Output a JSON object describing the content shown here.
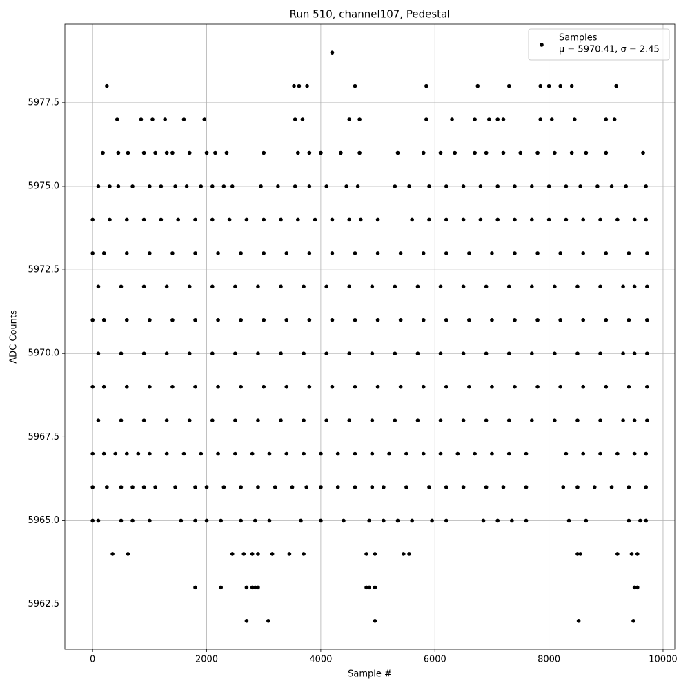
{
  "chart_data": {
    "type": "scatter",
    "title": "Run 510, channel107, Pedestal",
    "xlabel": "Sample #",
    "ylabel": "ADC Counts",
    "legend_text": "μ = 5970.41, σ = 2.45",
    "legend": "upper right",
    "grid": true,
    "xlim": [
      -486,
      10206
    ],
    "ylim": [
      5961.15,
      5979.85
    ],
    "xticks": [
      0,
      2000,
      4000,
      6000,
      8000,
      10000
    ],
    "yticks": [
      5962.5,
      {
        "value": 5965,
        "label": "5965.0"
      },
      5967.5,
      {
        "value": 5970,
        "label": "5970.0"
      },
      5972.5,
      {
        "value": 5975,
        "label": "5975.0"
      },
      5977.5
    ],
    "series": [
      {
        "name": "Samples",
        "color": "#000000",
        "x": [
          4200,
          250,
          3530,
          3620,
          3760,
          4600,
          5850,
          6750,
          7300,
          7850,
          8000,
          8200,
          8400,
          9180,
          430,
          850,
          1050,
          1270,
          1600,
          1960,
          3550,
          3680,
          4500,
          4680,
          5850,
          6300,
          6700,
          6950,
          7100,
          7200,
          7850,
          8050,
          8450,
          9000,
          9150,
          180,
          450,
          620,
          900,
          1100,
          1300,
          1400,
          1700,
          2000,
          2150,
          2350,
          3000,
          3600,
          3800,
          4000,
          4350,
          4680,
          5350,
          5800,
          6100,
          6350,
          6700,
          6900,
          7200,
          7500,
          7800,
          8100,
          8400,
          8650,
          9000,
          9650,
          100,
          300,
          450,
          700,
          1000,
          1200,
          1450,
          1650,
          1900,
          2100,
          2300,
          2450,
          2950,
          3250,
          3550,
          3800,
          4100,
          4450,
          4650,
          5300,
          5550,
          5900,
          6200,
          6500,
          6800,
          7100,
          7400,
          7700,
          8000,
          8300,
          8550,
          8850,
          9100,
          9350,
          9700,
          0,
          300,
          600,
          900,
          1200,
          1500,
          1800,
          2100,
          2400,
          2700,
          3000,
          3300,
          3600,
          3900,
          4200,
          4500,
          4700,
          5000,
          5600,
          5900,
          6200,
          6500,
          6800,
          7100,
          7400,
          7700,
          8000,
          8300,
          8600,
          8900,
          9200,
          9500,
          9700,
          0,
          200,
          600,
          1000,
          1400,
          1800,
          2200,
          2600,
          3000,
          3400,
          3800,
          4200,
          4600,
          5000,
          5400,
          5800,
          6200,
          6600,
          7000,
          7400,
          7800,
          8200,
          8600,
          9000,
          9400,
          9720,
          100,
          500,
          900,
          1300,
          1700,
          2100,
          2500,
          2900,
          3300,
          3700,
          4100,
          4500,
          4900,
          5300,
          5700,
          6100,
          6500,
          6900,
          7300,
          7700,
          8100,
          8500,
          8900,
          9300,
          9500,
          9720,
          0,
          200,
          600,
          1000,
          1400,
          1800,
          2200,
          2600,
          3000,
          3400,
          3800,
          4200,
          4600,
          5000,
          5400,
          5800,
          6200,
          6600,
          7000,
          7400,
          7800,
          8200,
          8600,
          9000,
          9400,
          9720,
          100,
          500,
          900,
          1300,
          1700,
          2100,
          2500,
          2900,
          3300,
          3700,
          4100,
          4500,
          4900,
          5300,
          5700,
          6100,
          6500,
          6900,
          7300,
          7700,
          8100,
          8500,
          8900,
          9300,
          9500,
          9720,
          0,
          200,
          600,
          1000,
          1400,
          1800,
          2200,
          2600,
          3000,
          3400,
          3800,
          4200,
          4600,
          5000,
          5400,
          5800,
          6200,
          6600,
          7000,
          7400,
          7800,
          8200,
          8600,
          9000,
          9400,
          9720,
          100,
          500,
          900,
          1300,
          1700,
          2100,
          2500,
          2900,
          3300,
          3700,
          4100,
          4500,
          4900,
          5300,
          5700,
          6100,
          6500,
          6900,
          7300,
          7700,
          8100,
          8500,
          8900,
          9300,
          9500,
          9720,
          0,
          200,
          400,
          600,
          800,
          1000,
          1300,
          1600,
          1900,
          2200,
          2500,
          2800,
          3100,
          3400,
          3700,
          4000,
          4300,
          4600,
          4900,
          5200,
          5500,
          5800,
          6100,
          6400,
          6700,
          7000,
          7300,
          7600,
          8300,
          8600,
          8900,
          9200,
          9500,
          9700,
          0,
          250,
          500,
          700,
          900,
          1100,
          1450,
          1800,
          2000,
          2300,
          2600,
          2900,
          3200,
          3500,
          3750,
          4000,
          4300,
          4600,
          4900,
          5100,
          5500,
          5900,
          6200,
          6500,
          6900,
          7200,
          7600,
          8250,
          8500,
          8800,
          9100,
          9400,
          9700,
          0,
          100,
          500,
          700,
          1000,
          1550,
          1800,
          2000,
          2250,
          2600,
          2850,
          3100,
          3650,
          4000,
          4400,
          4850,
          5100,
          5350,
          5600,
          5950,
          6200,
          6850,
          7100,
          7350,
          7600,
          8350,
          8650,
          9400,
          9600,
          9700,
          350,
          620,
          2450,
          2650,
          2800,
          2900,
          3150,
          3450,
          3700,
          4800,
          4950,
          5450,
          5550,
          8500,
          8550,
          9200,
          9450,
          9550,
          1800,
          2250,
          2700,
          2800,
          2850,
          2900,
          4800,
          4850,
          4950,
          9500,
          9550,
          2700,
          3080,
          4950,
          8520,
          9480
        ],
        "values": [
          5979,
          5978,
          5978,
          5978,
          5978,
          5978,
          5978,
          5978,
          5978,
          5978,
          5978,
          5978,
          5978,
          5978,
          5977,
          5977,
          5977,
          5977,
          5977,
          5977,
          5977,
          5977,
          5977,
          5977,
          5977,
          5977,
          5977,
          5977,
          5977,
          5977,
          5977,
          5977,
          5977,
          5977,
          5977,
          5976,
          5976,
          5976,
          5976,
          5976,
          5976,
          5976,
          5976,
          5976,
          5976,
          5976,
          5976,
          5976,
          5976,
          5976,
          5976,
          5976,
          5976,
          5976,
          5976,
          5976,
          5976,
          5976,
          5976,
          5976,
          5976,
          5976,
          5976,
          5976,
          5976,
          5976,
          5975,
          5975,
          5975,
          5975,
          5975,
          5975,
          5975,
          5975,
          5975,
          5975,
          5975,
          5975,
          5975,
          5975,
          5975,
          5975,
          5975,
          5975,
          5975,
          5975,
          5975,
          5975,
          5975,
          5975,
          5975,
          5975,
          5975,
          5975,
          5975,
          5975,
          5975,
          5975,
          5975,
          5975,
          5975,
          5974,
          5974,
          5974,
          5974,
          5974,
          5974,
          5974,
          5974,
          5974,
          5974,
          5974,
          5974,
          5974,
          5974,
          5974,
          5974,
          5974,
          5974,
          5974,
          5974,
          5974,
          5974,
          5974,
          5974,
          5974,
          5974,
          5974,
          5974,
          5974,
          5974,
          5974,
          5974,
          5974,
          5973,
          5973,
          5973,
          5973,
          5973,
          5973,
          5973,
          5973,
          5973,
          5973,
          5973,
          5973,
          5973,
          5973,
          5973,
          5973,
          5973,
          5973,
          5973,
          5973,
          5973,
          5973,
          5973,
          5973,
          5973,
          5973,
          5972,
          5972,
          5972,
          5972,
          5972,
          5972,
          5972,
          5972,
          5972,
          5972,
          5972,
          5972,
          5972,
          5972,
          5972,
          5972,
          5972,
          5972,
          5972,
          5972,
          5972,
          5972,
          5972,
          5972,
          5972,
          5972,
          5971,
          5971,
          5971,
          5971,
          5971,
          5971,
          5971,
          5971,
          5971,
          5971,
          5971,
          5971,
          5971,
          5971,
          5971,
          5971,
          5971,
          5971,
          5971,
          5971,
          5971,
          5971,
          5971,
          5971,
          5971,
          5971,
          5970,
          5970,
          5970,
          5970,
          5970,
          5970,
          5970,
          5970,
          5970,
          5970,
          5970,
          5970,
          5970,
          5970,
          5970,
          5970,
          5970,
          5970,
          5970,
          5970,
          5970,
          5970,
          5970,
          5970,
          5970,
          5970,
          5969,
          5969,
          5969,
          5969,
          5969,
          5969,
          5969,
          5969,
          5969,
          5969,
          5969,
          5969,
          5969,
          5969,
          5969,
          5969,
          5969,
          5969,
          5969,
          5969,
          5969,
          5969,
          5969,
          5969,
          5969,
          5969,
          5968,
          5968,
          5968,
          5968,
          5968,
          5968,
          5968,
          5968,
          5968,
          5968,
          5968,
          5968,
          5968,
          5968,
          5968,
          5968,
          5968,
          5968,
          5968,
          5968,
          5968,
          5968,
          5968,
          5968,
          5968,
          5968,
          5967,
          5967,
          5967,
          5967,
          5967,
          5967,
          5967,
          5967,
          5967,
          5967,
          5967,
          5967,
          5967,
          5967,
          5967,
          5967,
          5967,
          5967,
          5967,
          5967,
          5967,
          5967,
          5967,
          5967,
          5967,
          5967,
          5967,
          5967,
          5967,
          5967,
          5967,
          5967,
          5967,
          5967,
          5966,
          5966,
          5966,
          5966,
          5966,
          5966,
          5966,
          5966,
          5966,
          5966,
          5966,
          5966,
          5966,
          5966,
          5966,
          5966,
          5966,
          5966,
          5966,
          5966,
          5966,
          5966,
          5966,
          5966,
          5966,
          5966,
          5966,
          5966,
          5966,
          5966,
          5966,
          5966,
          5966,
          5965,
          5965,
          5965,
          5965,
          5965,
          5965,
          5965,
          5965,
          5965,
          5965,
          5965,
          5965,
          5965,
          5965,
          5965,
          5965,
          5965,
          5965,
          5965,
          5965,
          5965,
          5965,
          5965,
          5965,
          5965,
          5965,
          5965,
          5965,
          5965,
          5965,
          5964,
          5964,
          5964,
          5964,
          5964,
          5964,
          5964,
          5964,
          5964,
          5964,
          5964,
          5964,
          5964,
          5964,
          5964,
          5964,
          5964,
          5964,
          5963,
          5963,
          5963,
          5963,
          5963,
          5963,
          5963,
          5963,
          5963,
          5963,
          5963,
          5962,
          5962,
          5962,
          5962,
          5962
        ]
      }
    ]
  }
}
